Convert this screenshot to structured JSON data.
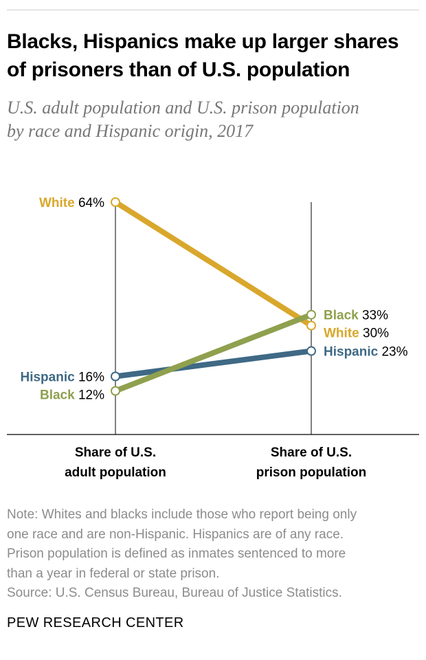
{
  "title_lines": [
    "Blacks, Hispanics make up larger shares",
    "of prisoners than of U.S. population"
  ],
  "subtitle_lines": [
    "U.S. adult population and U.S. prison population",
    "by race and Hispanic origin, 2017"
  ],
  "chart_data": {
    "type": "line",
    "categories": [
      [
        "Share of U.S.",
        "adult population"
      ],
      [
        "Share of U.S.",
        "prison population"
      ]
    ],
    "unit": "%",
    "series": [
      {
        "name": "White",
        "values": [
          64,
          30
        ],
        "color": "#d9a72c"
      },
      {
        "name": "Hispanic",
        "values": [
          16,
          23
        ],
        "color": "#3f6985"
      },
      {
        "name": "Black",
        "values": [
          12,
          33
        ],
        "color": "#8fa04e"
      }
    ],
    "value_labels": [
      [
        "64%",
        "30%"
      ],
      [
        "16%",
        "23%"
      ],
      [
        "12%",
        "33%"
      ]
    ],
    "ylim": [
      0,
      64
    ]
  },
  "notes": [
    "Note: Whites and blacks include those who report being only",
    "one race and are non-Hispanic. Hispanics are of any race.",
    "Prison population is defined as inmates sentenced to more",
    "than a year in federal or state prison.",
    "Source: U.S. Census Bureau, Bureau of Justice Statistics."
  ],
  "organization": "PEW RESEARCH CENTER"
}
